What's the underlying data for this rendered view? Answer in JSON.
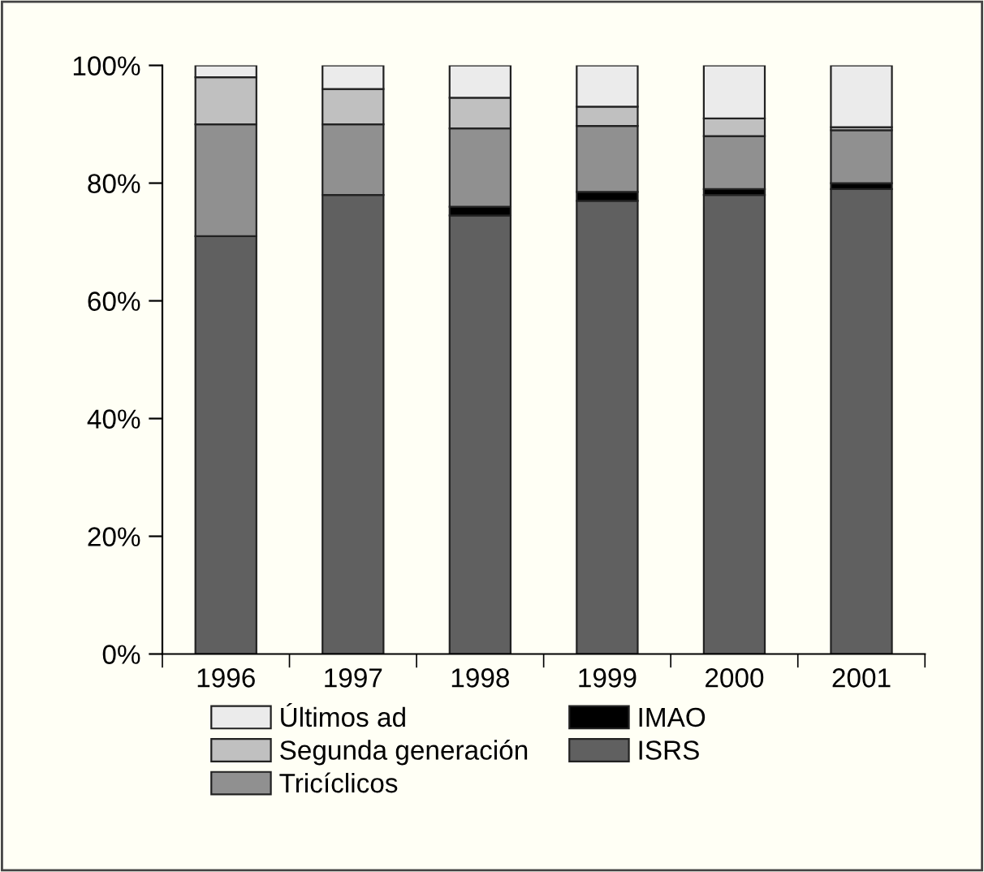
{
  "chart_data": {
    "type": "bar",
    "stacked": true,
    "categories": [
      "1996",
      "1997",
      "1998",
      "1999",
      "2000",
      "2001"
    ],
    "series": [
      {
        "name": "ISRS",
        "color": "#606060",
        "values": [
          71,
          78,
          74.5,
          77,
          78,
          79
        ]
      },
      {
        "name": "IMAO",
        "color": "#000000",
        "values": [
          null,
          null,
          1.5,
          1.5,
          1,
          1
        ]
      },
      {
        "name": "Tricíclicos",
        "color": "#909090",
        "values": [
          19,
          12,
          13.3,
          11.2,
          9,
          9
        ]
      },
      {
        "name": "Segunda generación",
        "color": "#c0c0c0",
        "values": [
          8,
          6,
          5.2,
          3.3,
          3,
          0.5
        ]
      },
      {
        "name": "Últimos ad",
        "color": "#ebebeb",
        "values": [
          2,
          4,
          5.5,
          7,
          9,
          10.5
        ]
      }
    ],
    "ylim": [
      0,
      100
    ],
    "yticks": [
      {
        "value": 0,
        "label": "0%"
      },
      {
        "value": 20,
        "label": "20%"
      },
      {
        "value": 40,
        "label": "40%"
      },
      {
        "value": 60,
        "label": "60%"
      },
      {
        "value": 80,
        "label": "80%"
      },
      {
        "value": 100,
        "label": "100%"
      }
    ],
    "grid": false,
    "legend": "bottom"
  }
}
